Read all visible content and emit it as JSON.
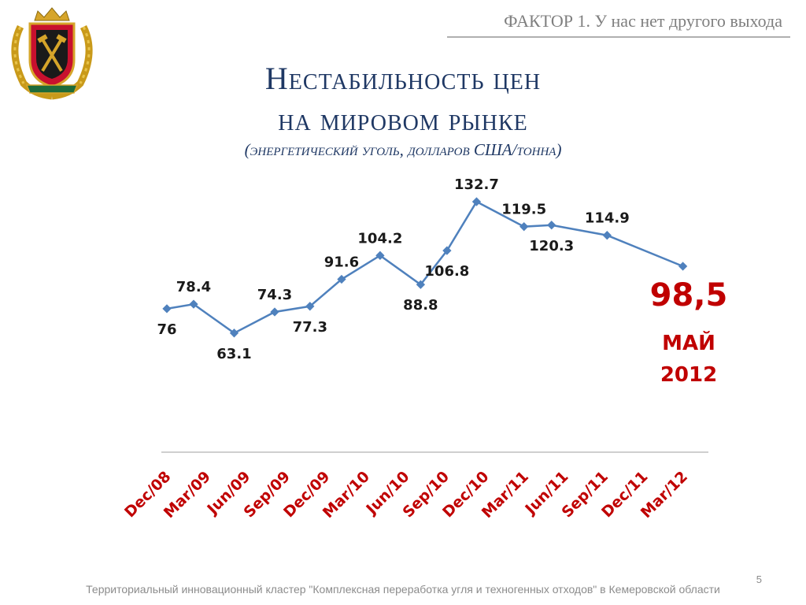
{
  "header": {
    "factor": "ФАКТОР 1. У нас нет другого выхода",
    "title_line1": "Нестабильность цен",
    "title_line2": "на мировом рынке",
    "subtitle": "(энергетический уголь, долларов США/тонна)"
  },
  "chart_data": {
    "type": "line",
    "title": "",
    "xlabel": "",
    "ylabel": "",
    "categories": [
      "Dec/08",
      "Mar/09",
      "Jun/09",
      "Sep/09",
      "Dec/09",
      "Mar/10",
      "Jun/10",
      "Sep/10",
      "Dec/10",
      "Mar/11",
      "Jun/11",
      "Sep/11",
      "Dec/11",
      "Mar/12"
    ],
    "x": [
      0,
      0.66,
      1.66,
      2.66,
      3.53,
      4.31,
      5.26,
      6.26,
      6.91,
      7.64,
      8.81,
      9.49,
      10.86,
      12.73
    ],
    "values": [
      76,
      78.4,
      63.1,
      74.3,
      77.3,
      91.6,
      104.2,
      88.8,
      106.8,
      132.7,
      119.5,
      120.3,
      114.9,
      98.5
    ],
    "labels": [
      "76",
      "78.4",
      "63.1",
      "74.3",
      "77.3",
      "91.6",
      "104.2",
      "88.8",
      "106.8",
      "132.7",
      "119.5",
      "120.3",
      "114.9",
      ""
    ],
    "label_positions": [
      "below",
      "above",
      "below",
      "above",
      "below",
      "above",
      "above",
      "below",
      "below",
      "above",
      "above",
      "below",
      "above",
      "none"
    ],
    "ylim": [
      0,
      150
    ],
    "grid": false,
    "legend": "none",
    "line_color": "#4f81bd",
    "highlight": {
      "value": "98,5",
      "month": "МАЙ",
      "year": "2012",
      "color": "#c00000"
    }
  },
  "footer": {
    "text": "Территориальный инновационный кластер \"Комплексная переработка угля и техногенных отходов\" в Кемеровской области",
    "page": "5"
  }
}
